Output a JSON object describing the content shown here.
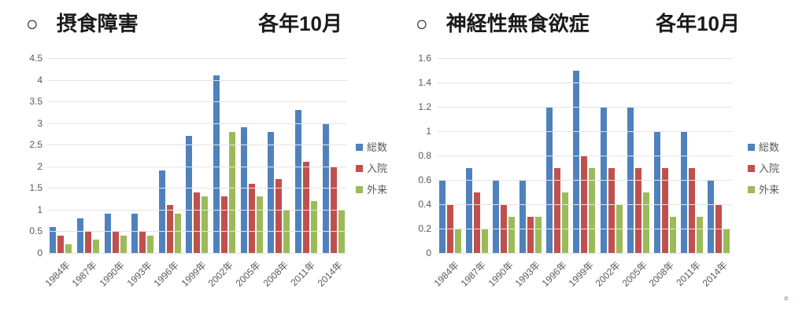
{
  "page": {
    "background": "#ffffff",
    "trailing_mark": "。"
  },
  "style": {
    "gridline_color": "#e3e3e3",
    "axis_label_color": "#595959",
    "title_color": "#1a1a1a"
  },
  "chart_data": [
    {
      "type": "bar",
      "title_prefix": "○",
      "title": "摂食障害",
      "subtitle": "各年10月",
      "categories": [
        "1984年",
        "1987年",
        "1990年",
        "1993年",
        "1996年",
        "1999年",
        "2002年",
        "2005年",
        "2008年",
        "2011年",
        "2014年"
      ],
      "series": [
        {
          "key": "total",
          "name": "総数",
          "color": "#4F81BD",
          "values": [
            0.6,
            0.8,
            0.9,
            0.9,
            1.9,
            2.7,
            4.1,
            2.9,
            2.8,
            3.3,
            3.0
          ]
        },
        {
          "key": "inpatient",
          "name": "入院",
          "color": "#C0504D",
          "values": [
            0.4,
            0.5,
            0.5,
            0.5,
            1.1,
            1.4,
            1.3,
            1.6,
            1.7,
            2.1,
            2.0
          ]
        },
        {
          "key": "outpatient",
          "name": "外来",
          "color": "#9BBB59",
          "values": [
            0.2,
            0.3,
            0.4,
            0.4,
            0.9,
            1.3,
            2.8,
            1.3,
            1.0,
            1.2,
            1.0
          ]
        }
      ],
      "ylim": [
        0,
        4.5
      ],
      "ytick_step": 0.5,
      "yticks": [
        "0",
        "0.5",
        "1",
        "1.5",
        "2",
        "2.5",
        "3",
        "3.5",
        "4",
        "4.5"
      ],
      "grid": true,
      "legend_position": "right"
    },
    {
      "type": "bar",
      "title_prefix": "○",
      "title": "神経性無食欲症",
      "subtitle": "各年10月",
      "categories": [
        "1984年",
        "1987年",
        "1990年",
        "1993年",
        "1996年",
        "1999年",
        "2002年",
        "2005年",
        "2008年",
        "2011年",
        "2014年"
      ],
      "series": [
        {
          "key": "total",
          "name": "総数",
          "color": "#4F81BD",
          "values": [
            0.6,
            0.7,
            0.6,
            0.6,
            1.2,
            1.5,
            1.2,
            1.2,
            1.0,
            1.0,
            0.6
          ]
        },
        {
          "key": "inpatient",
          "name": "入院",
          "color": "#C0504D",
          "values": [
            0.4,
            0.5,
            0.4,
            0.3,
            0.7,
            0.8,
            0.7,
            0.7,
            0.7,
            0.7,
            0.4
          ]
        },
        {
          "key": "outpatient",
          "name": "外来",
          "color": "#9BBB59",
          "values": [
            0.2,
            0.2,
            0.3,
            0.3,
            0.5,
            0.7,
            0.4,
            0.5,
            0.3,
            0.3,
            0.2
          ]
        }
      ],
      "ylim": [
        0,
        1.6
      ],
      "ytick_step": 0.2,
      "yticks": [
        "0",
        "0.2",
        "0.4",
        "0.6",
        "0.8",
        "1",
        "1.2",
        "1.4",
        "1.6"
      ],
      "grid": true,
      "legend_position": "right"
    }
  ]
}
